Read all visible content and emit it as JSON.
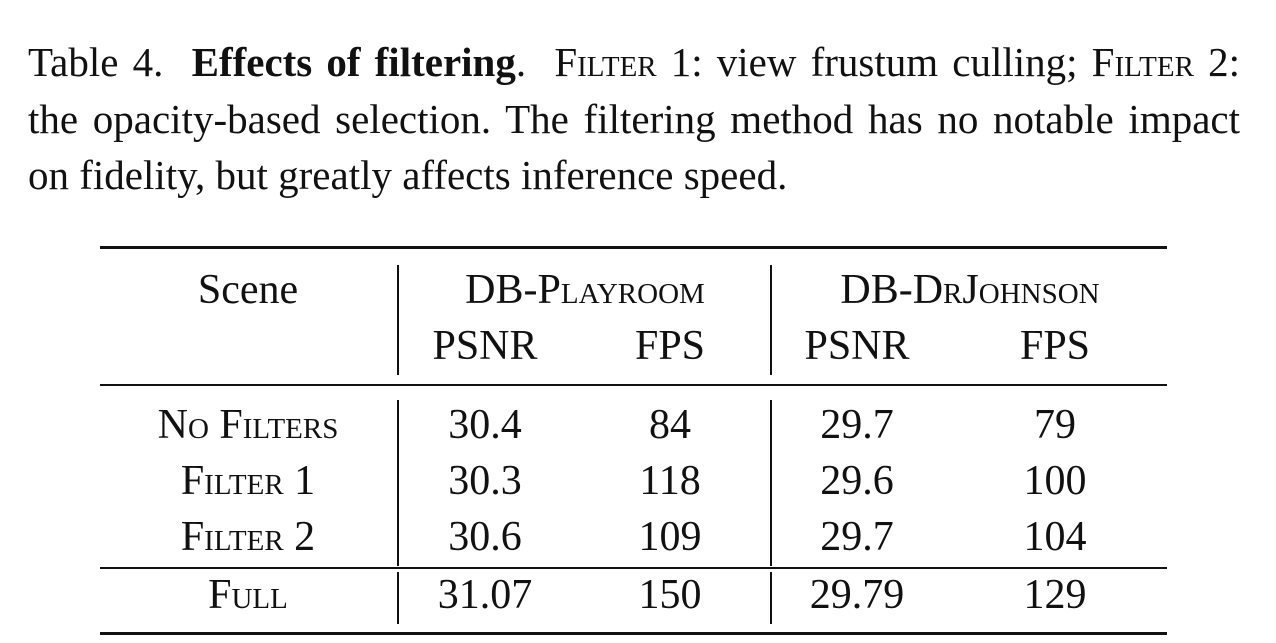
{
  "caption": {
    "label": "Table 4.",
    "title": "Effects of filtering",
    "body": [
      ".",
      "Filter",
      " 1: view frustum culling; ",
      "Filter",
      " 2: the opacity-based selection. The filtering method has no notable impact on fidelity, but greatly affects inference speed."
    ]
  },
  "table": {
    "scene_header": "Scene",
    "groups": [
      "DB-Playroom",
      "DB-DrJohnson"
    ],
    "subheaders": [
      "PSNR",
      "FPS",
      "PSNR",
      "FPS"
    ],
    "rows": [
      [
        "No Filters",
        30.4,
        84,
        29.7,
        79
      ],
      [
        "Filter 1",
        30.3,
        118,
        29.6,
        100
      ],
      [
        "Filter 2",
        30.6,
        109,
        29.7,
        104
      ],
      [
        "Full",
        31.07,
        150,
        29.79,
        129
      ]
    ]
  }
}
